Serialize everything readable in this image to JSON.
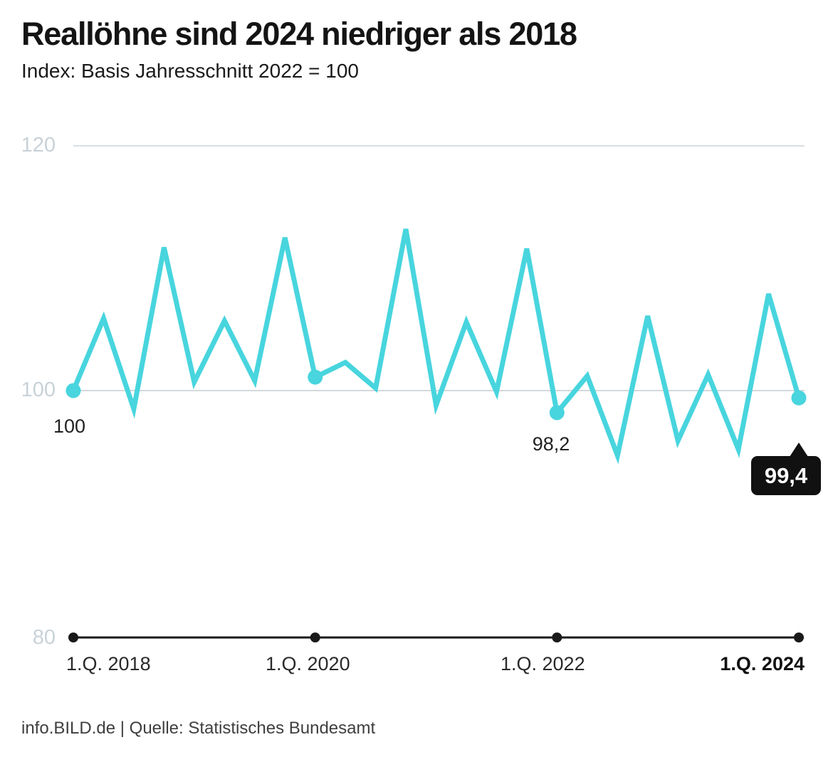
{
  "header": {
    "title": "Reallöhne sind 2024 niedriger als 2018",
    "subtitle": "Index: Basis Jahresschnitt 2022 = 100"
  },
  "footer": {
    "text": "info.BILD.de | Quelle: Statistisches Bundesamt"
  },
  "chart_data": {
    "type": "line",
    "title": "Reallöhne sind 2024 niedriger als 2018",
    "subtitle": "Index: Basis Jahresschnitt 2022 = 100",
    "categories": [
      "Q1 2018",
      "Q2 2018",
      "Q3 2018",
      "Q4 2018",
      "Q1 2019",
      "Q2 2019",
      "Q3 2019",
      "Q4 2019",
      "Q1 2020",
      "Q2 2020",
      "Q3 2020",
      "Q4 2020",
      "Q1 2021",
      "Q2 2021",
      "Q3 2021",
      "Q4 2021",
      "Q1 2022",
      "Q2 2022",
      "Q3 2022",
      "Q4 2022",
      "Q1 2023",
      "Q2 2023",
      "Q3 2023",
      "Q4 2023",
      "Q1 2024"
    ],
    "values": [
      100.0,
      105.9,
      98.5,
      111.7,
      100.7,
      105.7,
      100.8,
      112.5,
      101.1,
      102.3,
      100.2,
      113.2,
      98.8,
      105.6,
      99.9,
      111.6,
      98.2,
      101.2,
      94.7,
      106.1,
      95.9,
      101.3,
      95.2,
      107.9,
      99.4
    ],
    "ylim": [
      80,
      120
    ],
    "yticks": [
      "120",
      "100",
      "80"
    ],
    "xticks": [
      "1.Q. 2018",
      "1.Q. 2020",
      "1.Q. 2022",
      "1.Q. 2024"
    ],
    "marker_indices": [
      0,
      8,
      16,
      24
    ],
    "annotations": [
      {
        "index": 0,
        "text": "100",
        "style": "plain"
      },
      {
        "index": 16,
        "text": "98,2",
        "style": "plain"
      },
      {
        "index": 24,
        "text": "99,4",
        "style": "dark-tooltip"
      }
    ],
    "legend": "none",
    "grid": "horizontal",
    "colors": {
      "line": "#48d5de",
      "marker": "#48d5de",
      "grid": "#d9dee2",
      "axis": "#1a1a1a",
      "ytick_label": "#c8d2d8",
      "tooltip_bg": "#111111",
      "tooltip_text": "#ffffff"
    }
  }
}
